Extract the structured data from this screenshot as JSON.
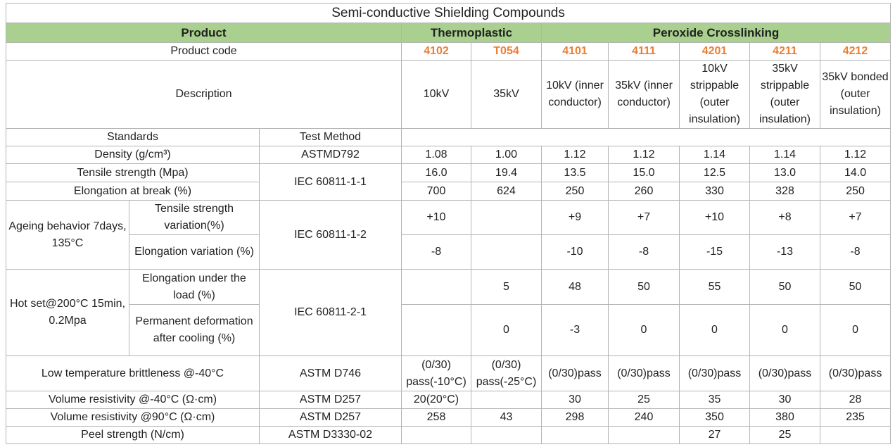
{
  "title": "Semi-conductive Shielding Compounds",
  "header": {
    "product": "Product",
    "thermoplastic": "Thermoplastic",
    "peroxide": "Peroxide Crosslinking"
  },
  "product_code": {
    "label": "Product code",
    "codes": [
      "4102",
      "T054",
      "4101",
      "4111",
      "4201",
      "4211",
      "4212"
    ]
  },
  "description": {
    "label": "Description",
    "values": [
      "10kV",
      "35kV",
      "10kV (inner conductor)",
      "35kV (inner conductor)",
      "10kV strippable (outer insulation)",
      "35kV strippable (outer insulation)",
      "35kV bonded (outer insulation)"
    ]
  },
  "columns": {
    "standards": "Standards",
    "test_method": "Test Method"
  },
  "properties": [
    {
      "label": "Density (g/cm³)",
      "method": "ASTMD792",
      "values": [
        "1.08",
        "1.00",
        "1.12",
        "1.12",
        "1.14",
        "1.14",
        "1.12"
      ]
    },
    {
      "method": "IEC 60811-1-1",
      "rows": [
        {
          "label": "Tensile strength (Mpa)",
          "values": [
            "16.0",
            "19.4",
            "13.5",
            "15.0",
            "12.5",
            "13.0",
            "14.0"
          ]
        },
        {
          "label": "Elongation at break (%)",
          "values": [
            "700",
            "624",
            "250",
            "260",
            "330",
            "328",
            "250"
          ]
        }
      ]
    },
    {
      "label": "Ageing behavior 7days, 135°C",
      "method": "IEC 60811-1-2",
      "rows": [
        {
          "label": "Tensile strength variation(%)",
          "values": [
            "+10",
            null,
            "+9",
            "+7",
            "+10",
            "+8",
            "+7"
          ]
        },
        {
          "label": "Elongation variation (%)",
          "values": [
            "-8",
            null,
            "-10",
            "-8",
            "-15",
            "-13",
            "-8"
          ]
        }
      ]
    },
    {
      "label": "Hot set@200°C 15min, 0.2Mpa",
      "method": "IEC 60811-2-1",
      "rows": [
        {
          "label": "Elongation under the load  (%)",
          "values": [
            null,
            "5",
            "48",
            "50",
            "55",
            "50",
            "50"
          ]
        },
        {
          "label": "Permanent deformation after cooling (%)",
          "values": [
            null,
            "0",
            "-3",
            "0",
            "0",
            "0",
            "0"
          ]
        }
      ]
    },
    {
      "label": "Low temperature  brittleness @-40°C",
      "method": "ASTM D746",
      "values": [
        "(0/30) pass(-10°C)",
        "(0/30) pass(-25°C)",
        "(0/30)pass",
        "(0/30)pass",
        "(0/30)pass",
        "(0/30)pass",
        "(0/30)pass"
      ]
    },
    {
      "label": "Volume resistivity @-40°C (Ω·cm)",
      "method": "ASTM D257",
      "values": [
        "20(20°C)",
        null,
        "30",
        "25",
        "35",
        "30",
        "28"
      ]
    },
    {
      "label": "Volume resistivity @90°C (Ω·cm)",
      "method": "ASTM D257",
      "values": [
        "258",
        "43",
        "298",
        "240",
        "350",
        "380",
        "235"
      ]
    },
    {
      "label": "Peel strength (N/cm)",
      "method": "ASTM D3330-02",
      "values": [
        null,
        null,
        null,
        null,
        "27",
        "25",
        null
      ]
    }
  ]
}
